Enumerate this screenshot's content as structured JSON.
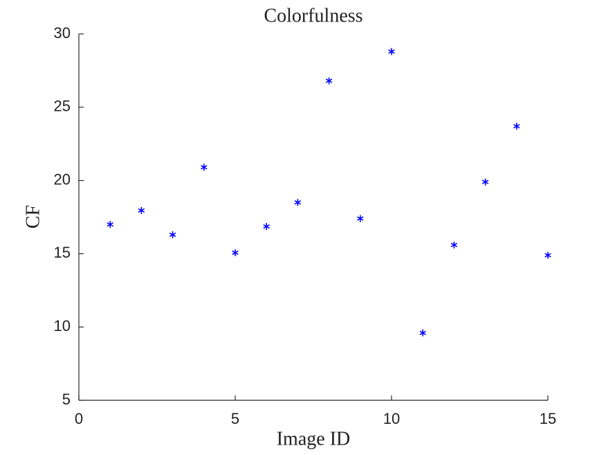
{
  "chart_data": {
    "type": "scatter",
    "title": "Colorfulness",
    "xlabel": "Image ID",
    "ylabel": "CF",
    "x": [
      1,
      2,
      3,
      4,
      5,
      6,
      7,
      8,
      9,
      10,
      11,
      12,
      13,
      14,
      15
    ],
    "values": [
      17.0,
      17.95,
      16.3,
      20.9,
      15.07,
      16.86,
      18.5,
      26.8,
      17.4,
      28.8,
      9.6,
      15.6,
      19.9,
      23.7,
      14.9
    ],
    "color": "#0000ff",
    "marker": "asterisk",
    "xlim": [
      0,
      15
    ],
    "xticks": [
      0,
      5,
      10,
      15
    ],
    "ylim": [
      5,
      30
    ],
    "yticks": [
      5,
      10,
      15,
      20,
      25,
      30
    ],
    "grid": false
  }
}
